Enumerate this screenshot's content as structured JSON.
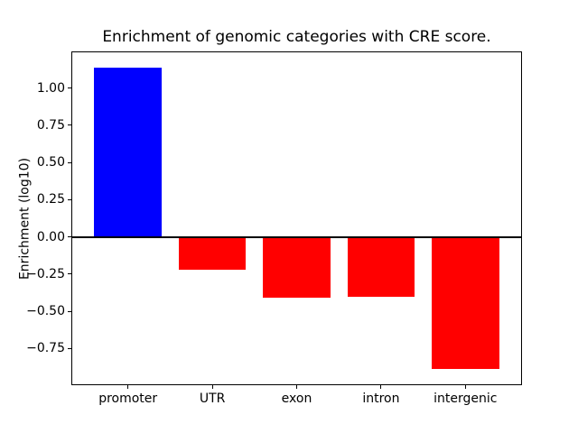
{
  "chart_data": {
    "type": "bar",
    "title": "Enrichment of genomic categories with CRE score.",
    "xlabel": "",
    "ylabel": "Enrichment (log10)",
    "categories": [
      "promoter",
      "UTR",
      "exon",
      "intron",
      "intergenic"
    ],
    "values": [
      1.14,
      -0.22,
      -0.41,
      -0.4,
      -0.89
    ],
    "bar_colors": [
      "#0000ff",
      "#ff0000",
      "#ff0000",
      "#ff0000",
      "#ff0000"
    ],
    "yticks": [
      1.0,
      0.75,
      0.5,
      0.25,
      0.0,
      -0.25,
      -0.5,
      -0.75
    ],
    "ytick_labels": [
      "1.00",
      "0.75",
      "0.50",
      "0.25",
      "0.00",
      "−0.25",
      "−0.50",
      "−0.75"
    ],
    "ylim": [
      -0.99,
      1.24
    ],
    "xlim": [
      -0.66,
      4.66
    ],
    "bar_width": 0.8,
    "grid": false,
    "legend": null,
    "zero_line": {
      "value": 0,
      "color": "#000000",
      "thickness_px": 2
    },
    "background_color": "#ffffff",
    "spine_color": "#000000"
  }
}
